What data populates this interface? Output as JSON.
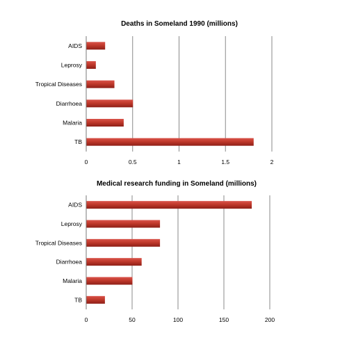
{
  "chart_data": [
    {
      "type": "bar",
      "orientation": "horizontal",
      "title": "Deaths in Someland 1990  (millions)",
      "categories": [
        "AIDS",
        "Leprosy",
        "Tropical Diseases",
        "Diarrhoea",
        "Malaria",
        "TB"
      ],
      "values": [
        0.2,
        0.1,
        0.3,
        0.5,
        0.4,
        1.8
      ],
      "xlim": [
        0,
        2
      ],
      "xticks": [
        "0",
        "0.5",
        "1",
        "1.5",
        "2"
      ],
      "grid": true,
      "legend": "none",
      "bar_color": "#c0392b"
    },
    {
      "type": "bar",
      "orientation": "horizontal",
      "title": "Medical research funding in Someland  (millions)",
      "categories": [
        "AIDS",
        "Leprosy",
        "Tropical Diseases",
        "Diarrhoea",
        "Malaria",
        "TB"
      ],
      "values": [
        180,
        80,
        80,
        60,
        50,
        20
      ],
      "xlim": [
        0,
        200
      ],
      "xticks": [
        "0",
        "50",
        "100",
        "150",
        "200"
      ],
      "grid": true,
      "legend": "none",
      "bar_color": "#c0392b"
    }
  ]
}
